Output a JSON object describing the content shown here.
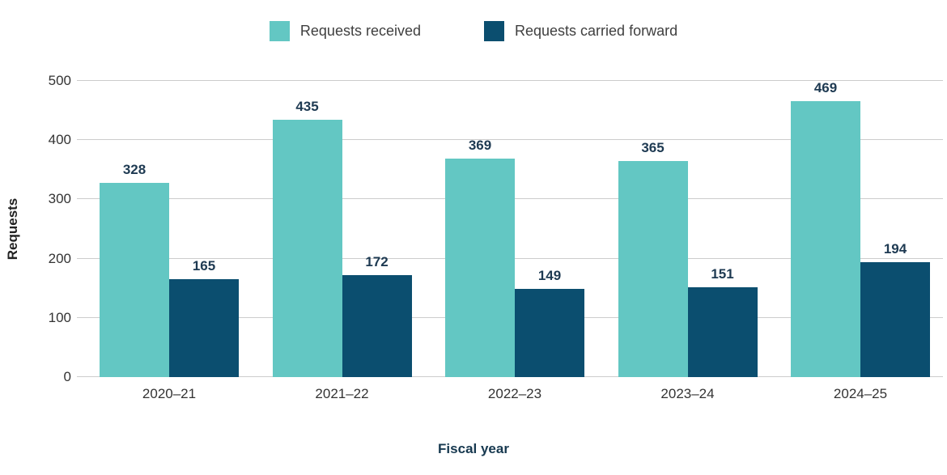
{
  "chart_data": {
    "type": "bar",
    "categories": [
      "2020–21",
      "2021–22",
      "2022–23",
      "2023–24",
      "2024–25"
    ],
    "series": [
      {
        "name": "Requests received",
        "color": "#63c7c3",
        "values": [
          328,
          435,
          369,
          365,
          469
        ]
      },
      {
        "name": "Requests carried forward",
        "color": "#0b4e6f",
        "values": [
          165,
          172,
          149,
          151,
          194
        ]
      }
    ],
    "title": "",
    "xlabel": "Fiscal year",
    "ylabel": "Requests",
    "ylim": [
      0,
      500
    ],
    "yticks": [
      0,
      100,
      200,
      300,
      400,
      500
    ],
    "grid": true,
    "legend_position": "top",
    "gridline_color": "#cccccc"
  }
}
